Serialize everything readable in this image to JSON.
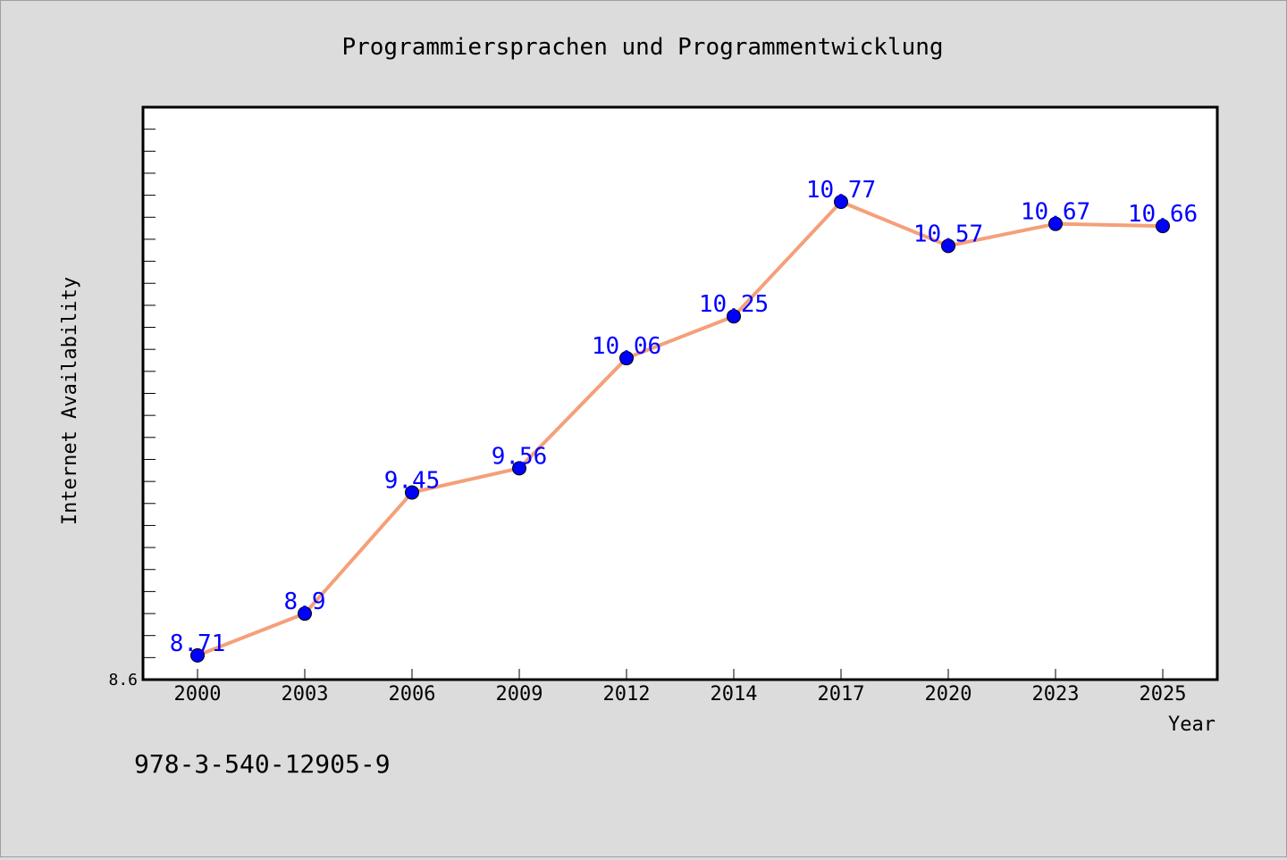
{
  "chart_data": {
    "type": "line",
    "title": "Programmiersprachen und Programmentwicklung",
    "xlabel": "Year",
    "ylabel": "Internet Availability",
    "categories": [
      "2000",
      "2003",
      "2006",
      "2009",
      "2012",
      "2014",
      "2017",
      "2020",
      "2023",
      "2025"
    ],
    "series": [
      {
        "values": [
          8.71,
          8.9,
          9.45,
          9.56,
          10.06,
          10.25,
          10.77,
          10.57,
          10.67,
          10.66
        ],
        "labels": [
          "8.71",
          "8.9",
          "9.45",
          "9.56",
          "10.06",
          "10.25",
          "10.77",
          "10.57",
          "10.67",
          "10.66"
        ],
        "line_color": "#f4a07a",
        "marker_color": "#0000ff",
        "label_color": "#0000ff"
      }
    ],
    "y_tick_labels": [
      "8.6"
    ],
    "ylim": [
      8.6,
      11.2
    ],
    "grid": false,
    "legend": "none"
  },
  "footer": {
    "isbn": "978-3-540-12905-9"
  }
}
